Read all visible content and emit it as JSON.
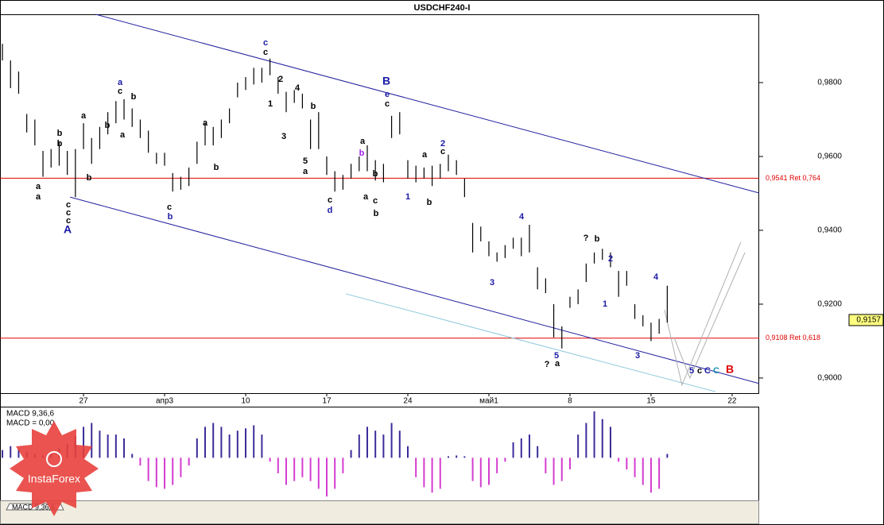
{
  "chart_data": [
    {
      "type": "ohlc",
      "title": "USDCHF240-I",
      "x": [
        -5,
        -4.5,
        -4,
        -3.5,
        -3,
        -2.5,
        -2,
        -1.5,
        -1,
        -0.5,
        0,
        0.5,
        1,
        1.5,
        2,
        2.5,
        3,
        3.5,
        4,
        4.5,
        5,
        5.5,
        6,
        6.5,
        7,
        7.5,
        8,
        8.5,
        9,
        9.5,
        10,
        10.5,
        11,
        11.5,
        12,
        12.5,
        13,
        13.5,
        14,
        14.5,
        15,
        15.5,
        16,
        16.5,
        17,
        17.5,
        18,
        18.5,
        19,
        19.5,
        20,
        20.5,
        21,
        21.5,
        22,
        22.5,
        23,
        23.5,
        24,
        24.5,
        25,
        25.5,
        26,
        26.5,
        27,
        27.5,
        28,
        28.5,
        29,
        29.5,
        30,
        30.5,
        31,
        31.5,
        32,
        32.5,
        33,
        33.5,
        34,
        34.5,
        35,
        35.5,
        36
      ],
      "high": [
        0.9905,
        0.986,
        0.983,
        0.9715,
        0.97,
        0.9615,
        0.962,
        0.964,
        0.9615,
        0.962,
        0.969,
        0.965,
        0.968,
        0.972,
        0.975,
        0.9755,
        0.973,
        0.97,
        0.967,
        0.961,
        0.961,
        0.9555,
        0.9545,
        0.957,
        0.964,
        0.969,
        0.968,
        0.97,
        0.973,
        0.98,
        0.9815,
        0.984,
        0.984,
        0.9865,
        0.9815,
        0.9775,
        0.978,
        0.977,
        0.97,
        0.972,
        0.96,
        0.956,
        0.955,
        0.958,
        0.96,
        0.963,
        0.959,
        0.958,
        0.971,
        0.972,
        0.959,
        0.9575,
        0.957,
        0.9575,
        0.958,
        0.9605,
        0.959,
        0.954,
        0.942,
        0.941,
        0.937,
        0.934,
        0.936,
        0.938,
        0.938,
        0.9415,
        0.93,
        0.927,
        0.92,
        0.914,
        0.922,
        0.924,
        0.931,
        0.934,
        0.935,
        0.934,
        0.929,
        0.929,
        0.92,
        0.917,
        0.915,
        0.916,
        0.925
      ],
      "low": [
        0.986,
        0.9785,
        0.977,
        0.9665,
        0.963,
        0.9545,
        0.957,
        0.9575,
        0.955,
        0.949,
        0.962,
        0.958,
        0.962,
        0.966,
        0.969,
        0.97,
        0.968,
        0.965,
        0.961,
        0.958,
        0.9575,
        0.9505,
        0.951,
        0.952,
        0.958,
        0.963,
        0.963,
        0.965,
        0.969,
        0.976,
        0.978,
        0.9795,
        0.98,
        0.982,
        0.977,
        0.972,
        0.9745,
        0.973,
        0.962,
        0.962,
        0.955,
        0.9505,
        0.951,
        0.954,
        0.956,
        0.956,
        0.9535,
        0.953,
        0.965,
        0.966,
        0.954,
        0.953,
        0.954,
        0.952,
        0.954,
        0.956,
        0.955,
        0.949,
        0.934,
        0.937,
        0.933,
        0.9315,
        0.9325,
        0.935,
        0.933,
        0.934,
        0.924,
        0.923,
        0.911,
        0.908,
        0.919,
        0.92,
        0.926,
        0.931,
        0.932,
        0.93,
        0.922,
        0.925,
        0.916,
        0.914,
        0.91,
        0.912,
        0.915
      ],
      "color": "#000000",
      "xlim": [
        -5.15,
        41.67
      ],
      "ylim": [
        0.8959,
        0.9985
      ],
      "xticks": [
        {
          "value": 0,
          "label": "27"
        },
        {
          "value": 5,
          "label": "апр3"
        },
        {
          "value": 10,
          "label": "10"
        },
        {
          "value": 15,
          "label": "17"
        },
        {
          "value": 20,
          "label": "24"
        },
        {
          "value": 25,
          "label": "май1"
        },
        {
          "value": 30,
          "label": "8"
        },
        {
          "value": 35,
          "label": "15"
        },
        {
          "value": 40,
          "label": "22"
        }
      ],
      "yticks": [
        {
          "value": 0.9,
          "label": "0,9000"
        },
        {
          "value": 0.92,
          "label": "0,9200"
        },
        {
          "value": 0.94,
          "label": "0,9400"
        },
        {
          "value": 0.96,
          "label": "0,9600"
        },
        {
          "value": 0.98,
          "label": "0,9800"
        }
      ],
      "last": {
        "value": 0.9157,
        "label": "0,9157"
      },
      "hlines": [
        {
          "value": 0.9541,
          "label": "0,9541 Ret 0,764",
          "color": "#e00000"
        },
        {
          "value": 0.9108,
          "label": "0,9108 Ret 0,618",
          "color": "#e00000"
        }
      ],
      "trendlines": [
        {
          "x": [
            0.74,
            41.67
          ],
          "y": [
            0.9985,
            0.9501
          ],
          "color": "#2020a0"
        },
        {
          "x": [
            -0.83,
            41.67
          ],
          "y": [
            0.949,
            0.8985
          ],
          "color": "#2020a0"
        },
        {
          "x": [
            16.18,
            38.97
          ],
          "y": [
            0.9228,
            0.8963
          ],
          "color": "#8fc8dc"
        },
        {
          "x": [
            35.83,
            36.91,
            40.54
          ],
          "y": [
            0.9185,
            0.8981,
            0.9368
          ],
          "color": "#b0b0b0"
        },
        {
          "x": [
            36.42,
            37.4,
            40.79
          ],
          "y": [
            0.911,
            0.9,
            0.934
          ],
          "color": "#b0b0b0"
        }
      ],
      "annotations": [
        {
          "text": "a",
          "color": "#000"
        },
        {
          "text": "a",
          "color": "#000"
        },
        {
          "text": "b",
          "color": "#000"
        },
        {
          "text": "b",
          "color": "#000"
        },
        {
          "text": "c",
          "color": "#000"
        },
        {
          "text": "c",
          "color": "#000"
        },
        {
          "text": "c",
          "color": "#000"
        },
        {
          "text": "A",
          "color": "#1a1aa6"
        },
        {
          "text": "a",
          "color": "#000"
        },
        {
          "text": "b",
          "color": "#000"
        },
        {
          "text": "b",
          "color": "#000"
        },
        {
          "text": "a",
          "color": "#1a1aa6"
        },
        {
          "text": "c",
          "color": "#000"
        },
        {
          "text": "b",
          "color": "#000"
        },
        {
          "text": "a",
          "color": "#000"
        },
        {
          "text": "c",
          "color": "#000"
        },
        {
          "text": "b",
          "color": "#1a1aa6"
        },
        {
          "text": "a",
          "color": "#000"
        },
        {
          "text": "b",
          "color": "#000"
        },
        {
          "text": "c",
          "color": "#1a1aa6"
        },
        {
          "text": "c",
          "color": "#000"
        },
        {
          "text": "2",
          "color": "#000"
        },
        {
          "text": "1",
          "color": "#000"
        },
        {
          "text": "3",
          "color": "#000"
        },
        {
          "text": "4",
          "color": "#000"
        },
        {
          "text": "b",
          "color": "#000"
        },
        {
          "text": "5",
          "color": "#000"
        },
        {
          "text": "a",
          "color": "#000"
        },
        {
          "text": "c",
          "color": "#000"
        },
        {
          "text": "d",
          "color": "#1a1aa6"
        },
        {
          "text": "a",
          "color": "#000"
        },
        {
          "text": "b",
          "color": "#a020f0"
        },
        {
          "text": "a",
          "color": "#000"
        },
        {
          "text": "b",
          "color": "#000"
        },
        {
          "text": "c",
          "color": "#000"
        },
        {
          "text": "b",
          "color": "#000"
        },
        {
          "text": "B",
          "color": "#1a1aa6"
        },
        {
          "text": "e",
          "color": "#1a1aa6"
        },
        {
          "text": "c",
          "color": "#000"
        },
        {
          "text": "1",
          "color": "#1a1aa6"
        },
        {
          "text": "a",
          "color": "#000"
        },
        {
          "text": "2",
          "color": "#1a1aa6"
        },
        {
          "text": "c",
          "color": "#000"
        },
        {
          "text": "b",
          "color": "#000"
        },
        {
          "text": "4",
          "color": "#1a1aa6"
        },
        {
          "text": "3",
          "color": "#1a1aa6"
        },
        {
          "text": "5",
          "color": "#1a1aa6"
        },
        {
          "text": "a",
          "color": "#000"
        },
        {
          "text": "?",
          "color": "#000"
        },
        {
          "text": "?",
          "color": "#000"
        },
        {
          "text": "b",
          "color": "#000"
        },
        {
          "text": "2",
          "color": "#1a1aa6"
        },
        {
          "text": "1",
          "color": "#1a1aa6"
        },
        {
          "text": "3",
          "color": "#1a1aa6"
        },
        {
          "text": "4",
          "color": "#1a1aa6"
        },
        {
          "text": "5",
          "color": "#1a1aa6"
        },
        {
          "text": "c",
          "color": "#000"
        },
        {
          "text": "C",
          "color": "#1a1aa6"
        },
        {
          "text": "C",
          "color": "#1e90b0"
        },
        {
          "text": "B",
          "color": "#e00000"
        }
      ]
    },
    {
      "type": "macd",
      "title": "MACD 9,36,6",
      "subtitle": "MACD = 0,00",
      "x": [
        -5,
        -4.5,
        -4,
        -3.5,
        -3,
        -2.5,
        -2,
        -1.5,
        -1,
        -0.5,
        0,
        0.5,
        1,
        1.5,
        2,
        2.5,
        3,
        3.5,
        4,
        4.5,
        5,
        5.5,
        6,
        6.5,
        7,
        7.5,
        8,
        8.5,
        9,
        9.5,
        10,
        10.5,
        11,
        11.5,
        12,
        12.5,
        13,
        13.5,
        14,
        14.5,
        15,
        15.5,
        16,
        16.5,
        17,
        17.5,
        18,
        18.5,
        19,
        19.5,
        20,
        20.5,
        21,
        21.5,
        22,
        22.5,
        23,
        23.5,
        24,
        24.5,
        25,
        25.5,
        26,
        26.5,
        27,
        27.5,
        28,
        28.5,
        29,
        29.5,
        30,
        30.5,
        31,
        31.5,
        32,
        32.5,
        33,
        33.5,
        34,
        34.5,
        35,
        35.5,
        36
      ],
      "values": [
        0.001,
        0.0015,
        0.0012,
        0.0008,
        0.0005,
        0.0003,
        0.0008,
        0.0012,
        0.0018,
        0.0028,
        0.004,
        0.0045,
        0.0035,
        0.003,
        0.003,
        0.0025,
        0.0005,
        -0.001,
        -0.003,
        -0.0038,
        -0.004,
        -0.0035,
        -0.0025,
        -0.001,
        0.0025,
        0.004,
        0.0045,
        0.004,
        0.003,
        0.0035,
        0.0038,
        0.0042,
        0.003,
        -0.0005,
        -0.002,
        -0.0035,
        -0.003,
        -0.0025,
        -0.003,
        -0.004,
        -0.005,
        -0.004,
        -0.002,
        0.001,
        0.003,
        0.004,
        0.0035,
        0.003,
        0.0045,
        0.0035,
        0.0015,
        -0.0025,
        -0.0038,
        -0.0045,
        -0.004,
        0.0002,
        0.0003,
        0.0002,
        -0.003,
        -0.0038,
        -0.0035,
        -0.002,
        -0.0005,
        0.002,
        0.0025,
        0.003,
        0.0015,
        -0.002,
        -0.0035,
        -0.003,
        -0.0015,
        0.003,
        0.0045,
        0.006,
        0.005,
        0.004,
        -0.0005,
        -0.0015,
        -0.0025,
        -0.0035,
        -0.0045,
        -0.004,
        0.0005
      ],
      "colors": {
        "positive": "#3a2c9a",
        "negative": "#d43cd0"
      },
      "xlim": [
        -5.15,
        41.67
      ],
      "ylim": [
        -0.0055,
        0.0065
      ]
    }
  ],
  "logo": "InstaForex"
}
